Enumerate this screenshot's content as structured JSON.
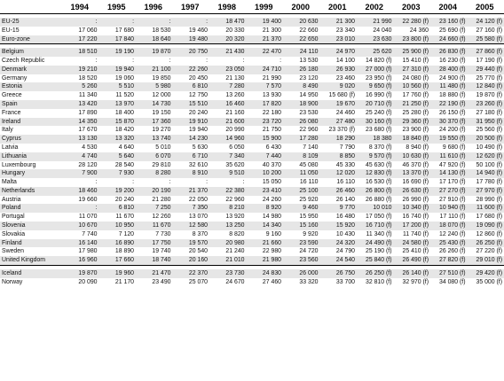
{
  "table": {
    "years": [
      "1994",
      "1995",
      "1996",
      "1997",
      "1998",
      "1999",
      "2000",
      "2001",
      "2002",
      "2003",
      "2004",
      "2005"
    ],
    "groups": [
      {
        "rows": [
          {
            "label": "EU-25",
            "values": [
              ":",
              ":",
              ":",
              ":",
              "18 470",
              "19 400",
              "20 630",
              "21 300",
              "21 990",
              "22 280 (f)",
              "23 160 (f)",
              "24 120 (f)"
            ]
          },
          {
            "label": "EU-15",
            "values": [
              "17 060",
              "17 680",
              "18 530",
              "19 460",
              "20 330",
              "21 300",
              "22 660",
              "23 340",
              "24 040",
              "24 360",
              "25 690 (f)",
              "27 160 (f)"
            ]
          },
          {
            "label": "Euro-zone",
            "values": [
              "17 220",
              "17 840",
              "18 640",
              "19 480",
              "20 320",
              "21 370",
              "22 650",
              "23 010",
              "23 630",
              "23 800 (f)",
              "24 660 (f)",
              "25 580 (f)"
            ]
          }
        ]
      },
      {
        "rows": [
          {
            "label": "Belgium",
            "values": [
              "18 510",
              "19 190",
              "19 870",
              "20 750",
              "21 430",
              "22 470",
              "24 110",
              "24 970",
              "25 620",
              "25 900 (f)",
              "26 830 (f)",
              "27 860 (f)"
            ]
          },
          {
            "label": "Czech Republic",
            "values": [
              ":",
              ":",
              ":",
              ":",
              ":",
              ":",
              "13 530",
              "14 100",
              "14 820 (f)",
              "15 410 (f)",
              "16 230 (f)",
              "17 190 (f)"
            ]
          },
          {
            "label": "Denmark",
            "values": [
              "19 210",
              "19 940",
              "21 100",
              "22 260",
              "23 050",
              "24 710",
              "26 180",
              "26 930",
              "27 000 (f)",
              "27 310 (f)",
              "28 400 (f)",
              "29 440 (f)"
            ]
          },
          {
            "label": "Germany",
            "values": [
              "18 520",
              "19 060",
              "19 850",
              "20 450",
              "21 130",
              "21 990",
              "23 120",
              "23 460",
              "23 950 (f)",
              "24 080 (f)",
              "24 900 (f)",
              "25 770 (f)"
            ]
          },
          {
            "label": "Estonia",
            "values": [
              "5 260",
              "5 510",
              "5 980",
              "6 810",
              "7 280",
              "7 570",
              "8 490",
              "9 020",
              "9 650 (f)",
              "10 560 (f)",
              "11 480 (f)",
              "12 840 (f)"
            ]
          },
          {
            "label": "Greece",
            "values": [
              "11 340",
              "11 520",
              "12 000",
              "12 750",
              "13 260",
              "13 930",
              "14 950",
              "15 680 (f)",
              "16 990 (f)",
              "17 760 (f)",
              "18 880 (f)",
              "19 870 (f)"
            ]
          },
          {
            "label": "Spain",
            "values": [
              "13 420",
              "13 970",
              "14 730",
              "15 510",
              "16 460",
              "17 820",
              "18 900",
              "19 670",
              "20 710 (f)",
              "21 250 (f)",
              "22 190 (f)",
              "23 260 (f)"
            ]
          },
          {
            "label": "France",
            "values": [
              "17 890",
              "18 400",
              "19 150",
              "20 240",
              "21 160",
              "22 180",
              "23 530",
              "24 460",
              "25 240 (f)",
              "25 280 (f)",
              "26 150 (f)",
              "27 180 (f)"
            ]
          },
          {
            "label": "Ireland",
            "values": [
              "14 350",
              "15 870",
              "17 360",
              "19 910",
              "21 600",
              "23 720",
              "26 080",
              "27 480",
              "30 160 (f)",
              "29 360 (f)",
              "30 370 (f)",
              "31 950 (f)"
            ]
          },
          {
            "label": "Italy",
            "values": [
              "17 670",
              "18 420",
              "19 270",
              "19 940",
              "20 990",
              "21 750",
              "22 960",
              "23 370 (f)",
              "23 680 (f)",
              "23 900 (f)",
              "24 200 (f)",
              "25 560 (f)"
            ]
          },
          {
            "label": "Cyprus",
            "values": [
              "13 130",
              "13 320",
              "13 740",
              "14 230",
              "14 960",
              "15 900",
              "17 280",
              "18 290",
              "18 380",
              "18 840 (f)",
              "19 550 (f)",
              "20 500 (f)"
            ]
          },
          {
            "label": "Latvia",
            "values": [
              "4 530",
              "4 640",
              "5 010",
              "5 630",
              "6 050",
              "6 430",
              "7 140",
              "7 790",
              "8 370 (f)",
              "8 940 (f)",
              "9 680 (f)",
              "10 490 (f)"
            ]
          },
          {
            "label": "Lithuania",
            "values": [
              "4 740",
              "5 640",
              "6 070",
              "6 710",
              "7 340",
              "7 440",
              "8 109",
              "8 850",
              "9 570 (f)",
              "10 630 (f)",
              "11 610 (f)",
              "12 620 (f)"
            ]
          },
          {
            "label": "Luxembourg",
            "values": [
              "28 120",
              "28 540",
              "29 810",
              "32 610",
              "35 620",
              "40 370",
              "45 080",
              "45 330",
              "45 630 (f)",
              "46 370 (f)",
              "47 920 (f)",
              "50 100 (f)"
            ]
          },
          {
            "label": "Hungary",
            "values": [
              "7 900",
              "7 930",
              "8 280",
              "8 910",
              "9 510",
              "10 200",
              "11 050",
              "12 020",
              "12 830 (f)",
              "13 370 (f)",
              "14 130 (f)",
              "14 940 (f)"
            ]
          },
          {
            "label": "Malta",
            "values": [
              ":",
              ":",
              ":",
              ":",
              ":",
              "15 050",
              "16 110",
              "16 110",
              "16 530 (f)",
              "16 690 (f)",
              "17 170 (f)",
              "17 780 (f)"
            ]
          },
          {
            "label": "Netherlands",
            "values": [
              "18 460",
              "19 200",
              "20 190",
              "21 370",
              "22 380",
              "23 410",
              "25 100",
              "26 460",
              "26 800 (f)",
              "26 630 (f)",
              "27 270 (f)",
              "27 970 (f)"
            ]
          },
          {
            "label": "Austria",
            "values": [
              "19 660",
              "20 240",
              "21 280",
              "22 050",
              "22 960",
              "24 260",
              "25 920",
              "26 140",
              "26 880 (f)",
              "26 990 (f)",
              "27 910 (f)",
              "28 990 (f)"
            ]
          },
          {
            "label": "Poland",
            "values": [
              ":",
              "6 810",
              "7 250",
              "7 350",
              "8 210",
              "8 920",
              "9 460",
              "9 770",
              "10 010",
              "10 340 (f)",
              "10 940 (f)",
              "11 600 (f)"
            ]
          },
          {
            "label": "Portugal",
            "values": [
              "11 070",
              "11 670",
              "12 260",
              "13 070",
              "13 920",
              "14 980",
              "15 950",
              "16 480",
              "17 050 (f)",
              "16 740 (f)",
              "17 110 (f)",
              "17 680 (f)"
            ]
          },
          {
            "label": "Slovenia",
            "values": [
              "10 670",
              "10 950",
              "11 670",
              "12 580",
              "13 250",
              "14 340",
              "15 160",
              "15 920",
              "16 710 (f)",
              "17 200 (f)",
              "18 070 (f)",
              "19 090 (f)"
            ]
          },
          {
            "label": "Slovakia",
            "values": [
              "7 740",
              "7 120",
              "7 730",
              "8 370",
              "8 820",
              "9 160",
              "9 920",
              "10 430",
              "11 340 (f)",
              "11 740 (f)",
              "12 240 (f)",
              "12 860 (f)"
            ]
          },
          {
            "label": "Finland",
            "values": [
              "16 140",
              "16 890",
              "17 750",
              "19 570",
              "20 980",
              "21 660",
              "23 590",
              "24 320",
              "24 490 (f)",
              "24 580 (f)",
              "25 430 (f)",
              "26 250 (f)"
            ]
          },
          {
            "label": "Sweden",
            "values": [
              "17 980",
              "18 890",
              "19 740",
              "20 540",
              "21 240",
              "22 980",
              "24 720",
              "24 790",
              "25 190 (f)",
              "25 410 (f)",
              "26 260 (f)",
              "27 220 (f)"
            ]
          },
          {
            "label": "United Kingdom",
            "values": [
              "16 960",
              "17 660",
              "18 740",
              "20 160",
              "21 010",
              "21 980",
              "23 560",
              "24 540",
              "25 840 (f)",
              "26 490 (f)",
              "27 820 (f)",
              "29 010 (f)"
            ]
          }
        ]
      },
      {
        "rows": [
          {
            "label": "Iceland",
            "values": [
              "19 870",
              "19 960",
              "21 470",
              "22 370",
              "23 730",
              "24 830",
              "26 000",
              "26 750",
              "26 250 (f)",
              "26 140 (f)",
              "27 510 (f)",
              "29 420 (f)"
            ]
          },
          {
            "label": "Norway",
            "values": [
              "20 090",
              "21 170",
              "23 490",
              "25 070",
              "24 670",
              "27 460",
              "33 320",
              "33 700",
              "32 810 (f)",
              "32 970 (f)",
              "34 080 (f)",
              "35 000 (f)"
            ]
          }
        ]
      }
    ]
  }
}
